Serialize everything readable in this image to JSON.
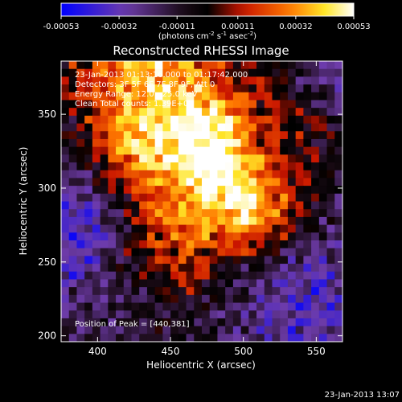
{
  "chart_data": {
    "type": "heatmap",
    "title": "Reconstructed RHESSI Image",
    "xlabel": "Heliocentric X (arcsec)",
    "ylabel": "Heliocentric Y (arcsec)",
    "xlim": [
      375,
      568
    ],
    "ylim": [
      196,
      386
    ],
    "x_ticks": [
      400,
      450,
      500,
      550
    ],
    "y_ticks": [
      200,
      250,
      300,
      350
    ],
    "colorbar": {
      "ticks": [
        "-0.00053",
        "-0.00032",
        "-0.00011",
        "0.00011",
        "0.00032",
        "0.00053"
      ],
      "unit_base": "(photons cm",
      "unit_sup1": "-2",
      "unit_mid1": " s",
      "unit_sup2": "-1",
      "unit_mid2": " asec",
      "unit_sup3": "-2",
      "unit_end": ")",
      "range": [
        -0.00053,
        0.00053
      ]
    },
    "info": {
      "time": "23-Jan-2013 01:13:16.000 to 01:17:42.000",
      "detectors": "Detectors: 3F 5F 6F 7F 8F 9F, Att 0",
      "energy": "Energy Range: 12.0 - 25.0 keV",
      "clean": "Clean    Total counts: 1.39E+04"
    },
    "peak": "Position of Peak = [440,381]",
    "peak_position": [
      440,
      381
    ],
    "timestamp": "23-Jan-2013 13:07"
  }
}
